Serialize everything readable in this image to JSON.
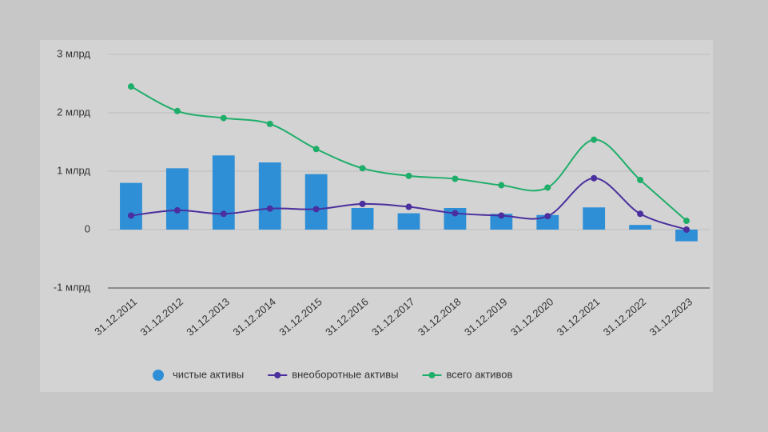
{
  "chart_data": {
    "type": "combo",
    "categories": [
      "31.12.2011",
      "31.12.2012",
      "31.12.2013",
      "31.12.2014",
      "31.12.2015",
      "31.12.2016",
      "31.12.2017",
      "31.12.2018",
      "31.12.2019",
      "31.12.2020",
      "31.12.2021",
      "31.12.2022",
      "31.12.2023"
    ],
    "series": [
      {
        "name": "чистые активы",
        "type": "bar",
        "color": "#2e8fd6",
        "values": [
          0.8,
          1.05,
          1.27,
          1.15,
          0.95,
          0.37,
          0.28,
          0.37,
          0.27,
          0.25,
          0.38,
          0.08,
          -0.2
        ]
      },
      {
        "name": "внеоборотные активы",
        "type": "line",
        "color": "#4b2f9e",
        "values": [
          0.24,
          0.33,
          0.27,
          0.36,
          0.35,
          0.44,
          0.39,
          0.28,
          0.24,
          0.23,
          0.88,
          0.27,
          0.0
        ]
      },
      {
        "name": "всего активов",
        "type": "line",
        "color": "#1fae6a",
        "values": [
          2.45,
          2.03,
          1.91,
          1.81,
          1.38,
          1.05,
          0.92,
          0.87,
          0.76,
          0.72,
          1.54,
          0.85,
          0.15
        ]
      }
    ],
    "ylim": [
      -1,
      3
    ],
    "yticks": [
      {
        "value": -1,
        "label": "-1 млрд"
      },
      0,
      {
        "value": 1,
        "label": "1 млрд"
      },
      {
        "value": 2,
        "label": "2 млрд"
      },
      {
        "value": 3,
        "label": "3 млрд"
      }
    ],
    "grid": true,
    "legend": "bottom"
  }
}
